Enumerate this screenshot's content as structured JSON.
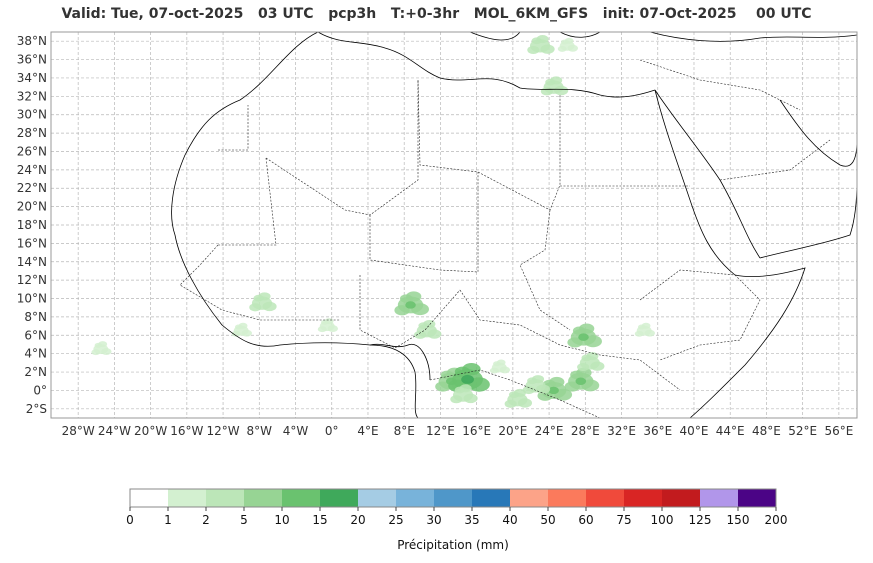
{
  "header": {
    "title": "Valid: Tue, 07-oct-2025   03 UTC   pcp3h   T:+0-3hr   MOL_6KM_GFS   init: 07-Oct-2025    00 UTC"
  },
  "map": {
    "lon_range": [
      -31,
      58
    ],
    "lat_range": [
      -3,
      39
    ],
    "lon_ticks": [
      {
        "value": -28,
        "label": "28°W"
      },
      {
        "value": -24,
        "label": "24°W"
      },
      {
        "value": -20,
        "label": "20°W"
      },
      {
        "value": -16,
        "label": "16°W"
      },
      {
        "value": -12,
        "label": "12°W"
      },
      {
        "value": -8,
        "label": "8°W"
      },
      {
        "value": -4,
        "label": "4°W"
      },
      {
        "value": 0,
        "label": "0°"
      },
      {
        "value": 4,
        "label": "4°E"
      },
      {
        "value": 8,
        "label": "8°E"
      },
      {
        "value": 12,
        "label": "12°E"
      },
      {
        "value": 16,
        "label": "16°E"
      },
      {
        "value": 20,
        "label": "20°E"
      },
      {
        "value": 24,
        "label": "24°E"
      },
      {
        "value": 28,
        "label": "28°E"
      },
      {
        "value": 32,
        "label": "32°E"
      },
      {
        "value": 36,
        "label": "36°E"
      },
      {
        "value": 40,
        "label": "40°E"
      },
      {
        "value": 44,
        "label": "44°E"
      },
      {
        "value": 48,
        "label": "48°E"
      },
      {
        "value": 52,
        "label": "52°E"
      },
      {
        "value": 56,
        "label": "56°E"
      }
    ],
    "lat_ticks": [
      {
        "value": 38,
        "label": "38°N"
      },
      {
        "value": 36,
        "label": "36°N"
      },
      {
        "value": 34,
        "label": "34°N"
      },
      {
        "value": 32,
        "label": "32°N"
      },
      {
        "value": 30,
        "label": "30°N"
      },
      {
        "value": 28,
        "label": "28°N"
      },
      {
        "value": 26,
        "label": "26°N"
      },
      {
        "value": 24,
        "label": "24°N"
      },
      {
        "value": 22,
        "label": "22°N"
      },
      {
        "value": 20,
        "label": "20°N"
      },
      {
        "value": 18,
        "label": "18°N"
      },
      {
        "value": 16,
        "label": "16°N"
      },
      {
        "value": 14,
        "label": "14°N"
      },
      {
        "value": 12,
        "label": "12°N"
      },
      {
        "value": 10,
        "label": "10°N"
      },
      {
        "value": 8,
        "label": "8°N"
      },
      {
        "value": 6,
        "label": "6°N"
      },
      {
        "value": 4,
        "label": "4°N"
      },
      {
        "value": 2,
        "label": "2°N"
      },
      {
        "value": 0,
        "label": "0°"
      },
      {
        "value": -2,
        "label": "2°S"
      }
    ],
    "gridlines": true,
    "precip_areas": [
      {
        "lon": 8.7,
        "lat": 9.3,
        "level": 3
      },
      {
        "lon": 10.5,
        "lat": 6.5,
        "level": 2
      },
      {
        "lon": 13.2,
        "lat": 1.0,
        "level": 3
      },
      {
        "lon": 15.0,
        "lat": 1.2,
        "level": 4
      },
      {
        "lon": 14.5,
        "lat": -0.5,
        "level": 2
      },
      {
        "lon": 18.5,
        "lat": 2.5,
        "level": 1
      },
      {
        "lon": 20.5,
        "lat": -1.0,
        "level": 2
      },
      {
        "lon": 24.5,
        "lat": 0.0,
        "level": 3
      },
      {
        "lon": 27.5,
        "lat": 1.0,
        "level": 3
      },
      {
        "lon": 27.8,
        "lat": 5.8,
        "level": 3
      },
      {
        "lon": 28.5,
        "lat": 3.0,
        "level": 2
      },
      {
        "lon": 22.5,
        "lat": 0.5,
        "level": 2
      },
      {
        "lon": -7.7,
        "lat": 9.5,
        "level": 2
      },
      {
        "lon": -10.0,
        "lat": 6.5,
        "level": 1
      },
      {
        "lon": -0.5,
        "lat": 7.0,
        "level": 1
      },
      {
        "lon": -25.5,
        "lat": 4.5,
        "level": 1
      },
      {
        "lon": 24.5,
        "lat": 33.0,
        "level": 2
      },
      {
        "lon": 23.0,
        "lat": 37.5,
        "level": 2
      },
      {
        "lon": 26.0,
        "lat": 37.5,
        "level": 1
      },
      {
        "lon": 34.5,
        "lat": 6.5,
        "level": 1
      }
    ]
  },
  "colorbar": {
    "labels": [
      "0",
      "1",
      "2",
      "5",
      "10",
      "15",
      "20",
      "25",
      "30",
      "35",
      "40",
      "50",
      "60",
      "75",
      "100",
      "125",
      "150",
      "200"
    ],
    "colors": [
      "#ffffff",
      "#d3f0d0",
      "#bce6b8",
      "#97d494",
      "#6ac26f",
      "#3fa95b",
      "#a5cce4",
      "#78b3da",
      "#4f97c9",
      "#2878b8",
      "#fca388",
      "#fb7a5c",
      "#f04a3b",
      "#d92524",
      "#c21b1e",
      "#b196ea",
      "#4b0486"
    ],
    "title": "Précipitation (mm)"
  }
}
